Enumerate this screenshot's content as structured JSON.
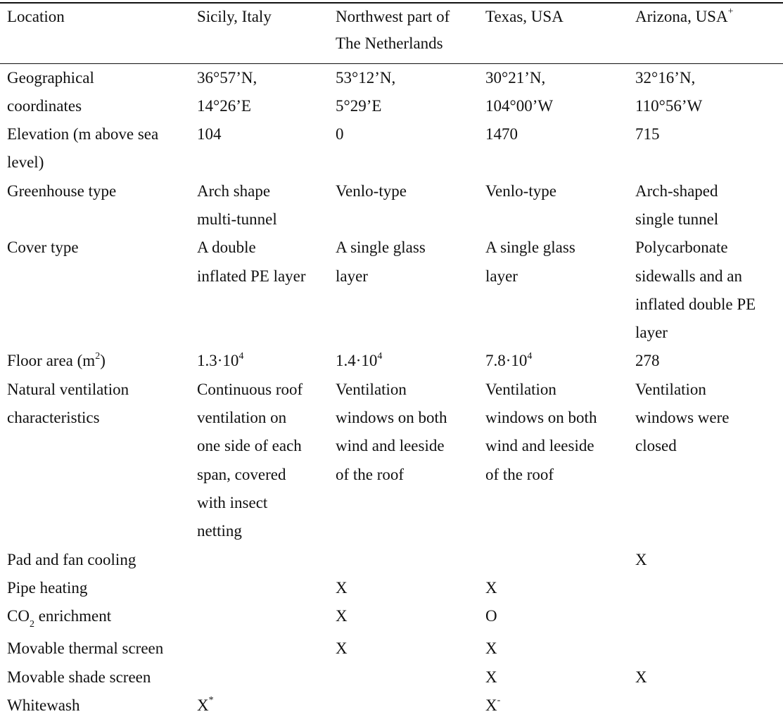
{
  "header": {
    "location": "Location",
    "sicily": "Sicily, Italy",
    "netherlands": "Northwest part of\nThe Netherlands",
    "texas": "Texas, USA",
    "arizona": "Arizona, USA",
    "arizona_mark": "+"
  },
  "rows": {
    "coords": {
      "label": "Geographical\ncoordinates",
      "sicily": "36°57’N,\n14°26’E",
      "netherlands": "53°12’N,\n5°29’E",
      "texas": "30°21’N,\n104°00’W",
      "arizona": "32°16’N,\n110°56’W"
    },
    "elevation": {
      "label": "Elevation (m above sea\nlevel)",
      "sicily": "104",
      "netherlands": "0",
      "texas": "1470",
      "arizona": "715"
    },
    "gh_type": {
      "label": "Greenhouse type",
      "sicily": "Arch shape\nmulti-tunnel",
      "netherlands": "Venlo-type",
      "texas": "Venlo-type",
      "arizona": "Arch-shaped\nsingle tunnel"
    },
    "cover": {
      "label": "Cover type",
      "sicily": "A double\ninflated PE layer",
      "netherlands": "A single glass\nlayer",
      "texas": "A single glass\nlayer",
      "arizona": "Polycarbonate\nsidewalls and an\ninflated double PE\nlayer"
    },
    "floor": {
      "label": "Floor area (m",
      "label_sup": "2",
      "label_end": ")",
      "sicily": "1.3·10",
      "sicily_exp": "4",
      "netherlands": "1.4·10",
      "netherlands_exp": "4",
      "texas": "7.8·10",
      "texas_exp": "4",
      "arizona": "278"
    },
    "ventilation": {
      "label": "Natural ventilation\ncharacteristics",
      "sicily": "Continuous roof\nventilation on\none side of each\nspan, covered\nwith insect\nnetting",
      "netherlands": "Ventilation\nwindows on both\nwind and leeside\nof the roof",
      "texas": "Ventilation\nwindows on both\nwind and leeside\nof the roof",
      "arizona": "Ventilation\nwindows were\nclosed"
    },
    "pad_fan": {
      "label": "Pad and fan cooling",
      "arizona": "X"
    },
    "pipe": {
      "label": "Pipe heating",
      "netherlands": "X",
      "texas": "X"
    },
    "co2": {
      "label_pre": "CO",
      "label_sub": "2",
      "label_post": " enrichment",
      "netherlands": "X",
      "texas": "O"
    },
    "thermal": {
      "label": "Movable thermal screen",
      "netherlands": "X",
      "texas": "X"
    },
    "shade": {
      "label": "Movable shade screen",
      "texas": "X",
      "arizona": "X"
    },
    "whitewash": {
      "label": "Whitewash",
      "sicily": "X",
      "sicily_mark": "*",
      "texas": "X",
      "texas_mark": "-"
    }
  }
}
